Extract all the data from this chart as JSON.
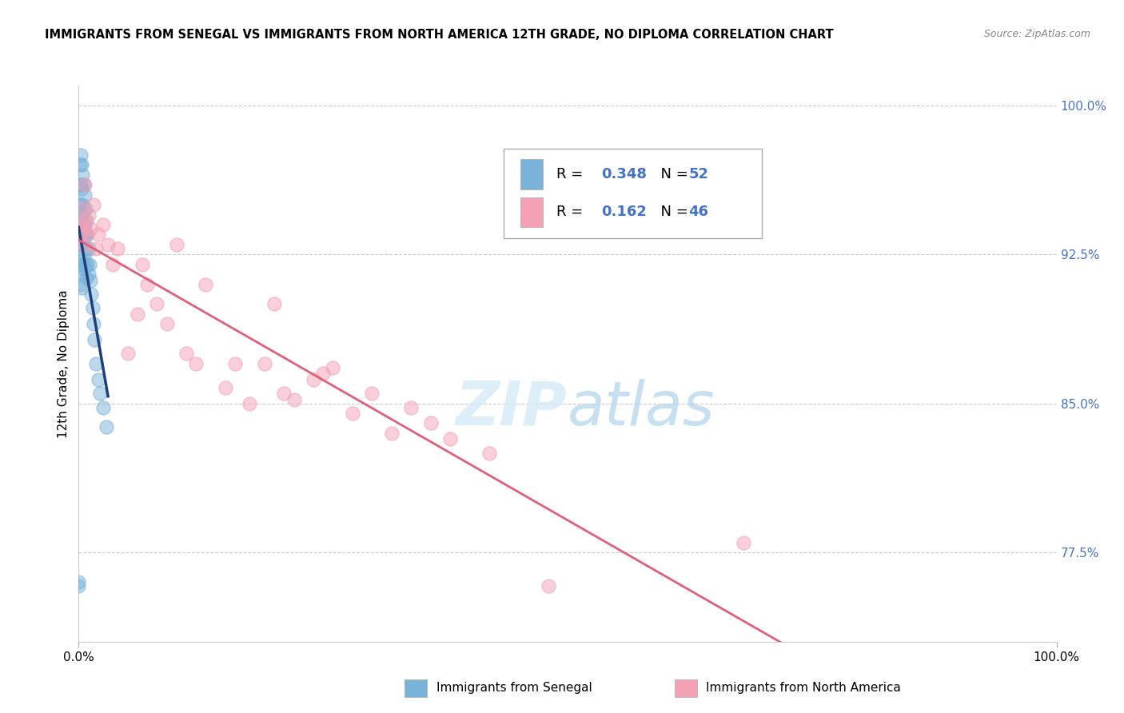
{
  "title": "IMMIGRANTS FROM SENEGAL VS IMMIGRANTS FROM NORTH AMERICA 12TH GRADE, NO DIPLOMA CORRELATION CHART",
  "source": "Source: ZipAtlas.com",
  "ylabel": "12th Grade, No Diploma",
  "legend1_label": "Immigrants from Senegal",
  "legend2_label": "Immigrants from North America",
  "r1": "0.348",
  "n1": "52",
  "r2": "0.162",
  "n2": "46",
  "color_blue": "#7ab3d9",
  "color_pink": "#f4a0b5",
  "color_line_blue": "#1f3f7a",
  "color_line_pink": "#e0607a",
  "color_text_blue": "#4472c4",
  "watermark_zip": "ZIP",
  "watermark_atlas": "atlas",
  "blue_x": [
    0.0,
    0.0,
    0.001,
    0.001,
    0.001,
    0.001,
    0.001,
    0.001,
    0.001,
    0.002,
    0.002,
    0.002,
    0.002,
    0.002,
    0.003,
    0.003,
    0.003,
    0.003,
    0.003,
    0.003,
    0.004,
    0.004,
    0.004,
    0.004,
    0.005,
    0.005,
    0.005,
    0.005,
    0.006,
    0.006,
    0.006,
    0.007,
    0.007,
    0.007,
    0.008,
    0.008,
    0.008,
    0.009,
    0.009,
    0.01,
    0.01,
    0.011,
    0.012,
    0.013,
    0.014,
    0.015,
    0.016,
    0.018,
    0.02,
    0.022,
    0.025,
    0.028
  ],
  "blue_y": [
    0.76,
    0.758,
    0.97,
    0.96,
    0.95,
    0.94,
    0.93,
    0.92,
    0.91,
    0.975,
    0.96,
    0.945,
    0.93,
    0.915,
    0.97,
    0.958,
    0.945,
    0.932,
    0.92,
    0.908,
    0.965,
    0.95,
    0.937,
    0.922,
    0.96,
    0.947,
    0.933,
    0.918,
    0.955,
    0.94,
    0.925,
    0.948,
    0.935,
    0.92,
    0.942,
    0.928,
    0.913,
    0.935,
    0.92,
    0.928,
    0.915,
    0.92,
    0.912,
    0.905,
    0.898,
    0.89,
    0.882,
    0.87,
    0.862,
    0.855,
    0.848,
    0.838
  ],
  "pink_x": [
    0.001,
    0.002,
    0.003,
    0.004,
    0.005,
    0.006,
    0.007,
    0.008,
    0.01,
    0.012,
    0.015,
    0.018,
    0.02,
    0.025,
    0.03,
    0.035,
    0.04,
    0.05,
    0.06,
    0.065,
    0.07,
    0.08,
    0.09,
    0.1,
    0.11,
    0.12,
    0.13,
    0.15,
    0.16,
    0.175,
    0.19,
    0.2,
    0.21,
    0.22,
    0.24,
    0.25,
    0.26,
    0.28,
    0.3,
    0.32,
    0.34,
    0.36,
    0.38,
    0.42,
    0.48,
    0.68
  ],
  "pink_y": [
    0.94,
    0.935,
    0.948,
    0.938,
    0.93,
    0.96,
    0.942,
    0.935,
    0.945,
    0.938,
    0.95,
    0.928,
    0.935,
    0.94,
    0.93,
    0.92,
    0.928,
    0.875,
    0.895,
    0.92,
    0.91,
    0.9,
    0.89,
    0.93,
    0.875,
    0.87,
    0.91,
    0.858,
    0.87,
    0.85,
    0.87,
    0.9,
    0.855,
    0.852,
    0.862,
    0.865,
    0.868,
    0.845,
    0.855,
    0.835,
    0.848,
    0.84,
    0.832,
    0.825,
    0.758,
    0.78
  ],
  "xlim": [
    0.0,
    1.0
  ],
  "ylim": [
    0.73,
    1.01
  ],
  "ytick_vals": [
    0.775,
    0.85,
    0.925,
    1.0
  ],
  "ytick_labels": [
    "77.5%",
    "85.0%",
    "92.5%",
    "100.0%"
  ],
  "xtick_vals": [
    0.0,
    1.0
  ],
  "xtick_labels": [
    "0.0%",
    "100.0%"
  ]
}
